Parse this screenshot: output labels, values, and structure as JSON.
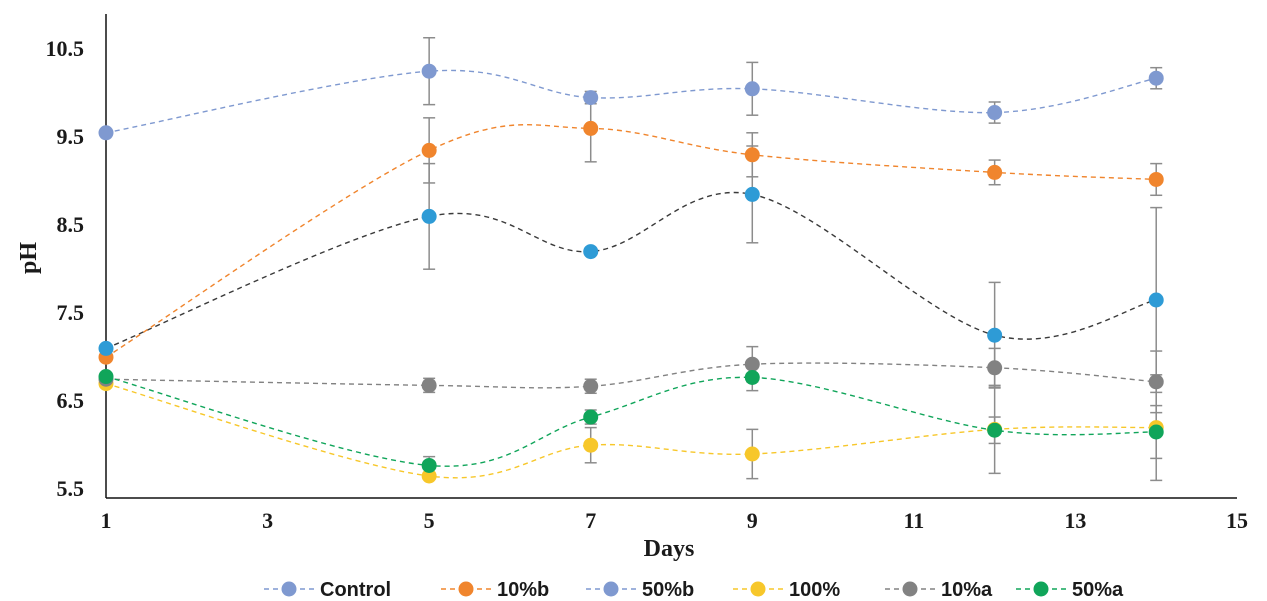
{
  "chart_data": {
    "type": "line",
    "xlabel": "Days",
    "ylabel": "pH",
    "xlim": [
      1,
      15
    ],
    "ylim": [
      5.4,
      10.9
    ],
    "x_ticks": [
      "1",
      "3",
      "5",
      "7",
      "9",
      "11",
      "13",
      "15"
    ],
    "y_ticks": [
      "5.5",
      "6.5",
      "7.5",
      "8.5",
      "9.5",
      "10.5"
    ],
    "grid": false,
    "legend_position": "bottom",
    "series": [
      {
        "name": "Control",
        "color": "#2E9BD6",
        "line_color": "#3A3A3A",
        "legend_marker_color": "#7F99D0",
        "legend_line_color": "#7F99D0",
        "points": [
          {
            "x": 1,
            "y": 7.1
          },
          {
            "x": 5,
            "y": 8.6,
            "err": 0.6
          },
          {
            "x": 7,
            "y": 8.2
          },
          {
            "x": 9,
            "y": 8.85,
            "err": 0.55
          },
          {
            "x": 12,
            "y": 7.25,
            "err": 0.6
          },
          {
            "x": 14,
            "y": 7.65,
            "err": 1.05
          }
        ]
      },
      {
        "name": "10%b",
        "color": "#F0852D",
        "line_color": "#F0852D",
        "points": [
          {
            "x": 1,
            "y": 7.0
          },
          {
            "x": 5,
            "y": 9.35,
            "err": 0.37
          },
          {
            "x": 7,
            "y": 9.6,
            "err": 0.38
          },
          {
            "x": 9,
            "y": 9.3,
            "err": 0.25
          },
          {
            "x": 12,
            "y": 9.1,
            "err": 0.14
          },
          {
            "x": 14,
            "y": 9.02,
            "err": 0.18
          }
        ]
      },
      {
        "name": "50%b",
        "color": "#7F99D0",
        "line_color": "#7F99D0",
        "points": [
          {
            "x": 1,
            "y": 9.55
          },
          {
            "x": 5,
            "y": 10.25,
            "err": 0.38
          },
          {
            "x": 7,
            "y": 9.95,
            "err": 0.07
          },
          {
            "x": 9,
            "y": 10.05,
            "err": 0.3
          },
          {
            "x": 12,
            "y": 9.78,
            "err": 0.12
          },
          {
            "x": 14,
            "y": 10.17,
            "err": 0.12
          }
        ]
      },
      {
        "name": "100%",
        "color": "#F7C72A",
        "line_color": "#F7C72A",
        "points": [
          {
            "x": 1,
            "y": 6.7
          },
          {
            "x": 5,
            "y": 5.65
          },
          {
            "x": 7,
            "y": 6.0,
            "err": 0.2
          },
          {
            "x": 9,
            "y": 5.9,
            "err": 0.28
          },
          {
            "x": 12,
            "y": 6.18,
            "err": 0.5
          },
          {
            "x": 14,
            "y": 6.2,
            "err": 0.6
          }
        ]
      },
      {
        "name": "10%a",
        "color": "#828282",
        "line_color": "#828282",
        "points": [
          {
            "x": 1,
            "y": 6.75
          },
          {
            "x": 5,
            "y": 6.68,
            "err": 0.08
          },
          {
            "x": 7,
            "y": 6.67,
            "err": 0.08
          },
          {
            "x": 9,
            "y": 6.92,
            "err": 0.2
          },
          {
            "x": 12,
            "y": 6.88,
            "err": 0.22
          },
          {
            "x": 14,
            "y": 6.72,
            "err": 0.35
          }
        ]
      },
      {
        "name": "50%a",
        "color": "#10A55A",
        "line_color": "#10A55A",
        "points": [
          {
            "x": 1,
            "y": 6.78
          },
          {
            "x": 5,
            "y": 5.77,
            "err": 0.1
          },
          {
            "x": 7,
            "y": 6.32,
            "err": 0.08
          },
          {
            "x": 9,
            "y": 6.77,
            "err": 0.15
          },
          {
            "x": 12,
            "y": 6.17,
            "err": 0.15
          },
          {
            "x": 14,
            "y": 6.15,
            "err": 0.3
          }
        ]
      }
    ]
  }
}
